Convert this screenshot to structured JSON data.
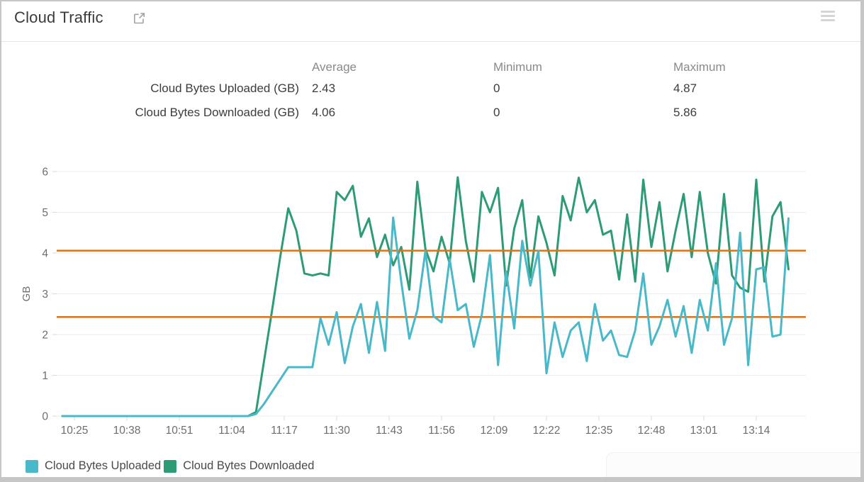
{
  "header": {
    "title": "Cloud Traffic",
    "open_icon": "external-link-icon",
    "menu_icon": "hamburger-menu-icon"
  },
  "stats": {
    "columns": [
      "Average",
      "Minimum",
      "Maximum"
    ],
    "rows": [
      {
        "label": "Cloud Bytes Uploaded (GB)",
        "average": "2.43",
        "minimum": "0",
        "maximum": "4.87"
      },
      {
        "label": "Cloud Bytes Downloaded (GB)",
        "average": "4.06",
        "minimum": "0",
        "maximum": "5.86"
      }
    ]
  },
  "chart_data": {
    "type": "line",
    "title": "",
    "xlabel": "",
    "ylabel": "GB",
    "ylim": [
      0,
      6
    ],
    "yticks": [
      0,
      1,
      2,
      3,
      4,
      5,
      6
    ],
    "grid": "horizontal",
    "legend_position": "bottom-left",
    "xticklabels": [
      "10:25",
      "10:38",
      "10:51",
      "11:04",
      "11:17",
      "11:30",
      "11:43",
      "11:56",
      "12:09",
      "12:22",
      "12:35",
      "12:48",
      "13:01",
      "13:14"
    ],
    "x_tick_interval_min": 13,
    "x_start_min": -3,
    "x_step_min": 2,
    "reference_lines": [
      {
        "value": 4.06,
        "color": "#d9731c",
        "meaning": "Cloud Bytes Downloaded average"
      },
      {
        "value": 2.43,
        "color": "#d9731c",
        "meaning": "Cloud Bytes Uploaded average"
      }
    ],
    "series": [
      {
        "name": "Cloud Bytes Uploaded",
        "color": "#49b8c8",
        "values": [
          0,
          0,
          0,
          0,
          0,
          0,
          0,
          0,
          0,
          0,
          0,
          0,
          0,
          0,
          0,
          0,
          0,
          0,
          0,
          0,
          0,
          0,
          0,
          0,
          0.05,
          0.3,
          0.6,
          0.9,
          1.2,
          1.2,
          1.2,
          1.2,
          2.4,
          1.75,
          2.55,
          1.3,
          2.2,
          2.75,
          1.55,
          2.8,
          1.6,
          4.87,
          3.3,
          1.9,
          2.6,
          4.05,
          2.45,
          2.3,
          3.85,
          2.6,
          2.75,
          1.7,
          2.5,
          3.95,
          1.25,
          3.55,
          2.15,
          4.3,
          3.2,
          4.05,
          1.05,
          2.3,
          1.45,
          2.1,
          2.3,
          1.35,
          2.75,
          1.85,
          2.1,
          1.5,
          1.45,
          2.1,
          3.5,
          1.75,
          2.2,
          2.85,
          1.95,
          2.7,
          1.55,
          2.85,
          2.1,
          3.75,
          1.75,
          2.4,
          4.5,
          1.25,
          3.6,
          3.65,
          1.95,
          2.0,
          4.85
        ]
      },
      {
        "name": "Cloud Bytes Downloaded",
        "color": "#2d9b76",
        "values": [
          0,
          0,
          0,
          0,
          0,
          0,
          0,
          0,
          0,
          0,
          0,
          0,
          0,
          0,
          0,
          0,
          0,
          0,
          0,
          0,
          0,
          0,
          0,
          0,
          0.1,
          1.35,
          2.6,
          3.9,
          5.1,
          4.55,
          3.5,
          3.45,
          3.5,
          3.45,
          5.5,
          5.3,
          5.65,
          4.4,
          4.85,
          3.9,
          4.45,
          3.7,
          4.15,
          3.1,
          5.75,
          4.1,
          3.55,
          4.4,
          3.75,
          5.86,
          4.3,
          3.3,
          5.5,
          5.0,
          5.6,
          3.2,
          4.6,
          5.3,
          3.4,
          4.9,
          4.25,
          3.45,
          5.4,
          4.8,
          5.85,
          5.0,
          5.3,
          4.45,
          4.55,
          3.35,
          4.95,
          3.3,
          5.8,
          4.15,
          5.25,
          3.55,
          4.55,
          5.45,
          3.9,
          5.5,
          4.0,
          3.25,
          5.45,
          3.45,
          3.15,
          3.05,
          5.8,
          3.3,
          4.9,
          5.25,
          3.6
        ]
      }
    ],
    "axis_color": "#6e6e6e",
    "grid_color": "#ececec",
    "tick_color": "#d9d9d9"
  }
}
